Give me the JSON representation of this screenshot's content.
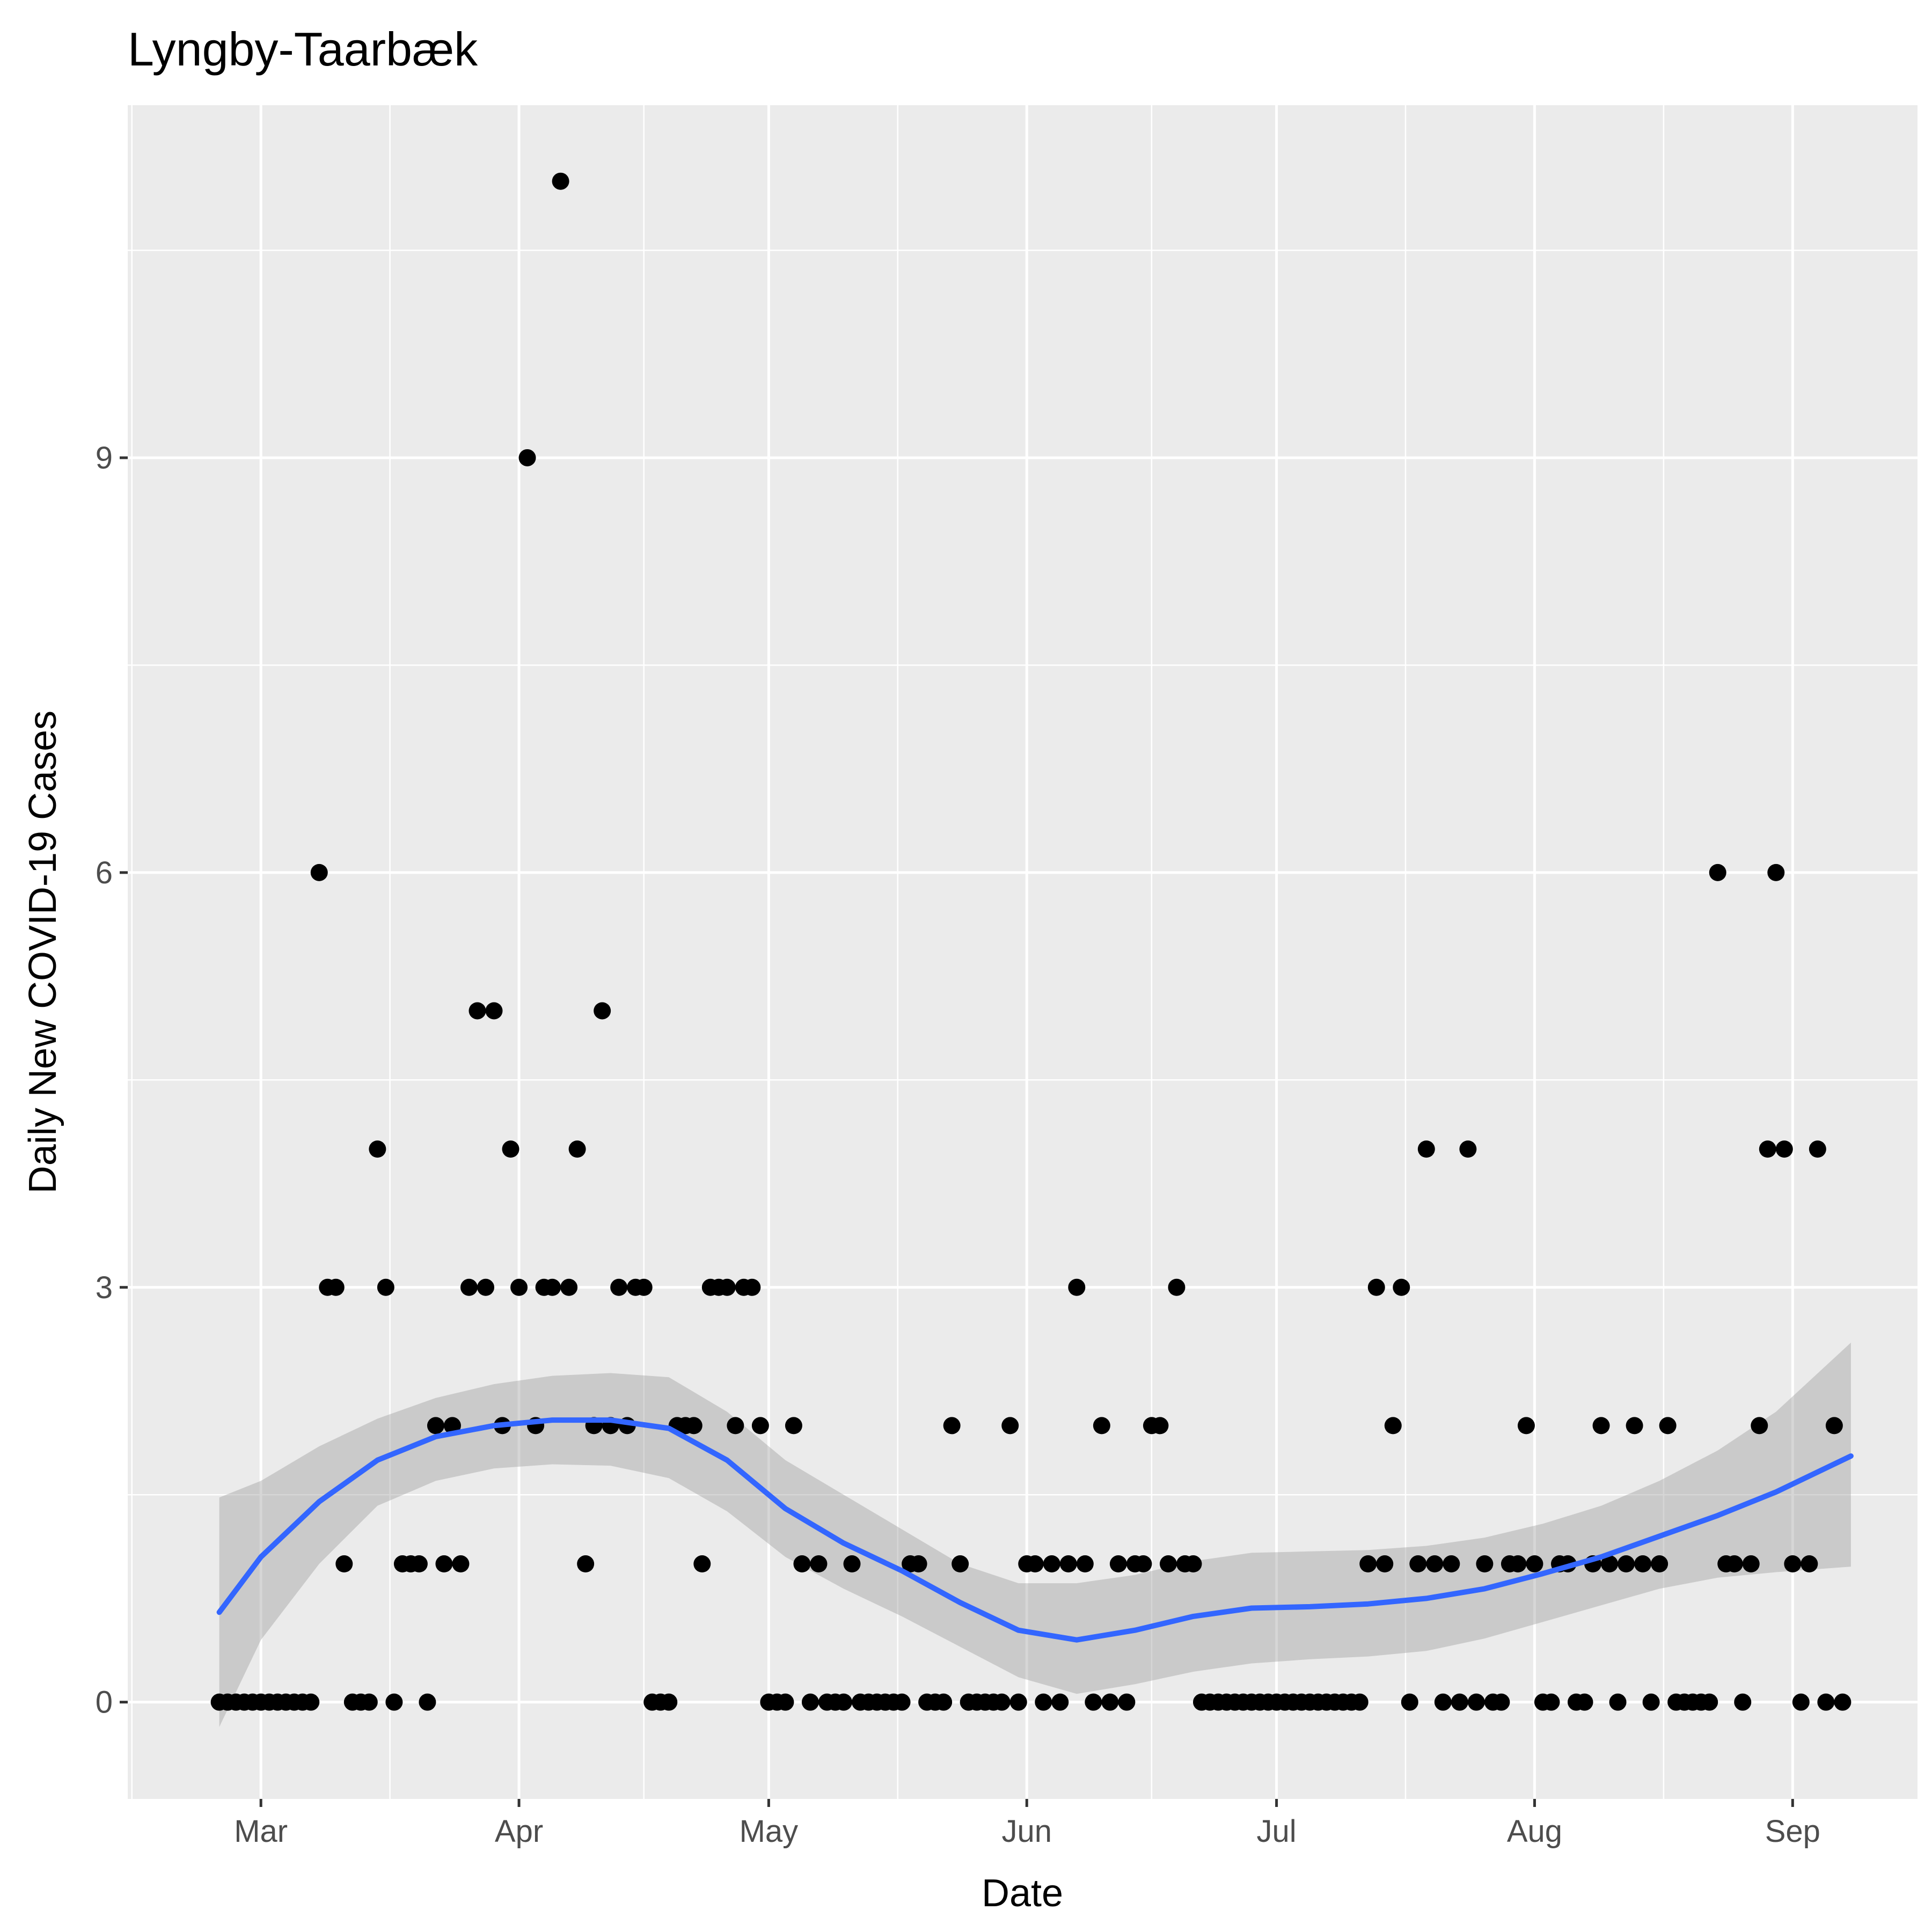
{
  "chart_data": {
    "type": "scatter",
    "title": "Lyngby-Taarbæk",
    "xlabel": "Date",
    "ylabel": "Daily New COVID-19 Cases",
    "x_ticks": [
      {
        "date": "2020-03-01",
        "label": "Mar"
      },
      {
        "date": "2020-04-01",
        "label": "Apr"
      },
      {
        "date": "2020-05-01",
        "label": "May"
      },
      {
        "date": "2020-06-01",
        "label": "Jun"
      },
      {
        "date": "2020-07-01",
        "label": "Jul"
      },
      {
        "date": "2020-08-01",
        "label": "Aug"
      },
      {
        "date": "2020-09-01",
        "label": "Sep"
      }
    ],
    "y_ticks": [
      0,
      3,
      6,
      9
    ],
    "xlim": [
      "2020-02-14",
      "2020-09-16"
    ],
    "ylim": [
      -0.7,
      11.55
    ],
    "grid": true,
    "background": "#ebebeb",
    "points": [
      {
        "x": "2020-02-25",
        "y": 0
      },
      {
        "x": "2020-02-26",
        "y": 0
      },
      {
        "x": "2020-02-27",
        "y": 0
      },
      {
        "x": "2020-02-28",
        "y": 0
      },
      {
        "x": "2020-02-29",
        "y": 0
      },
      {
        "x": "2020-03-01",
        "y": 0
      },
      {
        "x": "2020-03-02",
        "y": 0
      },
      {
        "x": "2020-03-03",
        "y": 0
      },
      {
        "x": "2020-03-04",
        "y": 0
      },
      {
        "x": "2020-03-05",
        "y": 0
      },
      {
        "x": "2020-03-06",
        "y": 0
      },
      {
        "x": "2020-03-07",
        "y": 0
      },
      {
        "x": "2020-03-08",
        "y": 6
      },
      {
        "x": "2020-03-09",
        "y": 3
      },
      {
        "x": "2020-03-10",
        "y": 3
      },
      {
        "x": "2020-03-11",
        "y": 1
      },
      {
        "x": "2020-03-12",
        "y": 0
      },
      {
        "x": "2020-03-13",
        "y": 0
      },
      {
        "x": "2020-03-14",
        "y": 0
      },
      {
        "x": "2020-03-15",
        "y": 4
      },
      {
        "x": "2020-03-16",
        "y": 3
      },
      {
        "x": "2020-03-17",
        "y": 0
      },
      {
        "x": "2020-03-18",
        "y": 1
      },
      {
        "x": "2020-03-19",
        "y": 1
      },
      {
        "x": "2020-03-20",
        "y": 1
      },
      {
        "x": "2020-03-21",
        "y": 0
      },
      {
        "x": "2020-03-22",
        "y": 2
      },
      {
        "x": "2020-03-23",
        "y": 1
      },
      {
        "x": "2020-03-24",
        "y": 2
      },
      {
        "x": "2020-03-25",
        "y": 1
      },
      {
        "x": "2020-03-26",
        "y": 3
      },
      {
        "x": "2020-03-27",
        "y": 5
      },
      {
        "x": "2020-03-28",
        "y": 3
      },
      {
        "x": "2020-03-29",
        "y": 5
      },
      {
        "x": "2020-03-30",
        "y": 2
      },
      {
        "x": "2020-03-31",
        "y": 4
      },
      {
        "x": "2020-04-01",
        "y": 3
      },
      {
        "x": "2020-04-02",
        "y": 9
      },
      {
        "x": "2020-04-03",
        "y": 2
      },
      {
        "x": "2020-04-04",
        "y": 3
      },
      {
        "x": "2020-04-05",
        "y": 3
      },
      {
        "x": "2020-04-06",
        "y": 11
      },
      {
        "x": "2020-04-07",
        "y": 3
      },
      {
        "x": "2020-04-08",
        "y": 4
      },
      {
        "x": "2020-04-09",
        "y": 1
      },
      {
        "x": "2020-04-10",
        "y": 2
      },
      {
        "x": "2020-04-11",
        "y": 5
      },
      {
        "x": "2020-04-12",
        "y": 2
      },
      {
        "x": "2020-04-13",
        "y": 3
      },
      {
        "x": "2020-04-14",
        "y": 2
      },
      {
        "x": "2020-04-15",
        "y": 3
      },
      {
        "x": "2020-04-16",
        "y": 3
      },
      {
        "x": "2020-04-17",
        "y": 0
      },
      {
        "x": "2020-04-18",
        "y": 0
      },
      {
        "x": "2020-04-19",
        "y": 0
      },
      {
        "x": "2020-04-20",
        "y": 2
      },
      {
        "x": "2020-04-21",
        "y": 2
      },
      {
        "x": "2020-04-22",
        "y": 2
      },
      {
        "x": "2020-04-23",
        "y": 1
      },
      {
        "x": "2020-04-24",
        "y": 3
      },
      {
        "x": "2020-04-25",
        "y": 3
      },
      {
        "x": "2020-04-26",
        "y": 3
      },
      {
        "x": "2020-04-27",
        "y": 2
      },
      {
        "x": "2020-04-28",
        "y": 3
      },
      {
        "x": "2020-04-29",
        "y": 3
      },
      {
        "x": "2020-04-30",
        "y": 2
      },
      {
        "x": "2020-05-01",
        "y": 0
      },
      {
        "x": "2020-05-02",
        "y": 0
      },
      {
        "x": "2020-05-03",
        "y": 0
      },
      {
        "x": "2020-05-04",
        "y": 2
      },
      {
        "x": "2020-05-05",
        "y": 1
      },
      {
        "x": "2020-05-06",
        "y": 0
      },
      {
        "x": "2020-05-07",
        "y": 1
      },
      {
        "x": "2020-05-08",
        "y": 0
      },
      {
        "x": "2020-05-09",
        "y": 0
      },
      {
        "x": "2020-05-10",
        "y": 0
      },
      {
        "x": "2020-05-11",
        "y": 1
      },
      {
        "x": "2020-05-12",
        "y": 0
      },
      {
        "x": "2020-05-13",
        "y": 0
      },
      {
        "x": "2020-05-14",
        "y": 0
      },
      {
        "x": "2020-05-15",
        "y": 0
      },
      {
        "x": "2020-05-16",
        "y": 0
      },
      {
        "x": "2020-05-17",
        "y": 0
      },
      {
        "x": "2020-05-18",
        "y": 1
      },
      {
        "x": "2020-05-19",
        "y": 1
      },
      {
        "x": "2020-05-20",
        "y": 0
      },
      {
        "x": "2020-05-21",
        "y": 0
      },
      {
        "x": "2020-05-22",
        "y": 0
      },
      {
        "x": "2020-05-23",
        "y": 2
      },
      {
        "x": "2020-05-24",
        "y": 1
      },
      {
        "x": "2020-05-25",
        "y": 0
      },
      {
        "x": "2020-05-26",
        "y": 0
      },
      {
        "x": "2020-05-27",
        "y": 0
      },
      {
        "x": "2020-05-28",
        "y": 0
      },
      {
        "x": "2020-05-29",
        "y": 0
      },
      {
        "x": "2020-05-30",
        "y": 2
      },
      {
        "x": "2020-05-31",
        "y": 0
      },
      {
        "x": "2020-06-01",
        "y": 1
      },
      {
        "x": "2020-06-02",
        "y": 1
      },
      {
        "x": "2020-06-03",
        "y": 0
      },
      {
        "x": "2020-06-04",
        "y": 1
      },
      {
        "x": "2020-06-05",
        "y": 0
      },
      {
        "x": "2020-06-06",
        "y": 1
      },
      {
        "x": "2020-06-07",
        "y": 3
      },
      {
        "x": "2020-06-08",
        "y": 1
      },
      {
        "x": "2020-06-09",
        "y": 0
      },
      {
        "x": "2020-06-10",
        "y": 2
      },
      {
        "x": "2020-06-11",
        "y": 0
      },
      {
        "x": "2020-06-12",
        "y": 1
      },
      {
        "x": "2020-06-13",
        "y": 0
      },
      {
        "x": "2020-06-14",
        "y": 1
      },
      {
        "x": "2020-06-15",
        "y": 1
      },
      {
        "x": "2020-06-16",
        "y": 2
      },
      {
        "x": "2020-06-17",
        "y": 2
      },
      {
        "x": "2020-06-18",
        "y": 1
      },
      {
        "x": "2020-06-19",
        "y": 3
      },
      {
        "x": "2020-06-20",
        "y": 1
      },
      {
        "x": "2020-06-21",
        "y": 1
      },
      {
        "x": "2020-06-22",
        "y": 0
      },
      {
        "x": "2020-06-23",
        "y": 0
      },
      {
        "x": "2020-06-24",
        "y": 0
      },
      {
        "x": "2020-06-25",
        "y": 0
      },
      {
        "x": "2020-06-26",
        "y": 0
      },
      {
        "x": "2020-06-27",
        "y": 0
      },
      {
        "x": "2020-06-28",
        "y": 0
      },
      {
        "x": "2020-06-29",
        "y": 0
      },
      {
        "x": "2020-06-30",
        "y": 0
      },
      {
        "x": "2020-07-01",
        "y": 0
      },
      {
        "x": "2020-07-02",
        "y": 0
      },
      {
        "x": "2020-07-03",
        "y": 0
      },
      {
        "x": "2020-07-04",
        "y": 0
      },
      {
        "x": "2020-07-05",
        "y": 0
      },
      {
        "x": "2020-07-06",
        "y": 0
      },
      {
        "x": "2020-07-07",
        "y": 0
      },
      {
        "x": "2020-07-08",
        "y": 0
      },
      {
        "x": "2020-07-09",
        "y": 0
      },
      {
        "x": "2020-07-10",
        "y": 0
      },
      {
        "x": "2020-07-11",
        "y": 0
      },
      {
        "x": "2020-07-12",
        "y": 1
      },
      {
        "x": "2020-07-13",
        "y": 3
      },
      {
        "x": "2020-07-14",
        "y": 1
      },
      {
        "x": "2020-07-15",
        "y": 2
      },
      {
        "x": "2020-07-16",
        "y": 3
      },
      {
        "x": "2020-07-17",
        "y": 0
      },
      {
        "x": "2020-07-18",
        "y": 1
      },
      {
        "x": "2020-07-19",
        "y": 4
      },
      {
        "x": "2020-07-20",
        "y": 1
      },
      {
        "x": "2020-07-21",
        "y": 0
      },
      {
        "x": "2020-07-22",
        "y": 1
      },
      {
        "x": "2020-07-23",
        "y": 0
      },
      {
        "x": "2020-07-24",
        "y": 4
      },
      {
        "x": "2020-07-25",
        "y": 0
      },
      {
        "x": "2020-07-26",
        "y": 1
      },
      {
        "x": "2020-07-27",
        "y": 0
      },
      {
        "x": "2020-07-28",
        "y": 0
      },
      {
        "x": "2020-07-29",
        "y": 1
      },
      {
        "x": "2020-07-30",
        "y": 1
      },
      {
        "x": "2020-07-31",
        "y": 2
      },
      {
        "x": "2020-08-01",
        "y": 1
      },
      {
        "x": "2020-08-02",
        "y": 0
      },
      {
        "x": "2020-08-03",
        "y": 0
      },
      {
        "x": "2020-08-04",
        "y": 1
      },
      {
        "x": "2020-08-05",
        "y": 1
      },
      {
        "x": "2020-08-06",
        "y": 0
      },
      {
        "x": "2020-08-07",
        "y": 0
      },
      {
        "x": "2020-08-08",
        "y": 1
      },
      {
        "x": "2020-08-09",
        "y": 2
      },
      {
        "x": "2020-08-10",
        "y": 1
      },
      {
        "x": "2020-08-11",
        "y": 0
      },
      {
        "x": "2020-08-12",
        "y": 1
      },
      {
        "x": "2020-08-13",
        "y": 2
      },
      {
        "x": "2020-08-14",
        "y": 1
      },
      {
        "x": "2020-08-15",
        "y": 0
      },
      {
        "x": "2020-08-16",
        "y": 1
      },
      {
        "x": "2020-08-17",
        "y": 2
      },
      {
        "x": "2020-08-18",
        "y": 0
      },
      {
        "x": "2020-08-19",
        "y": 0
      },
      {
        "x": "2020-08-20",
        "y": 0
      },
      {
        "x": "2020-08-21",
        "y": 0
      },
      {
        "x": "2020-08-22",
        "y": 0
      },
      {
        "x": "2020-08-23",
        "y": 6
      },
      {
        "x": "2020-08-24",
        "y": 1
      },
      {
        "x": "2020-08-25",
        "y": 1
      },
      {
        "x": "2020-08-26",
        "y": 0
      },
      {
        "x": "2020-08-27",
        "y": 1
      },
      {
        "x": "2020-08-28",
        "y": 2
      },
      {
        "x": "2020-08-29",
        "y": 4
      },
      {
        "x": "2020-08-30",
        "y": 6
      },
      {
        "x": "2020-08-31",
        "y": 4
      },
      {
        "x": "2020-09-01",
        "y": 1
      },
      {
        "x": "2020-09-02",
        "y": 0
      },
      {
        "x": "2020-09-03",
        "y": 1
      },
      {
        "x": "2020-09-04",
        "y": 4
      },
      {
        "x": "2020-09-05",
        "y": 0
      },
      {
        "x": "2020-09-06",
        "y": 2
      },
      {
        "x": "2020-09-07",
        "y": 0
      }
    ],
    "smooth_line": {
      "color": "#3366ff",
      "points": [
        {
          "x": "2020-02-25",
          "y": 0.65
        },
        {
          "x": "2020-03-01",
          "y": 1.05
        },
        {
          "x": "2020-03-08",
          "y": 1.45
        },
        {
          "x": "2020-03-15",
          "y": 1.75
        },
        {
          "x": "2020-03-22",
          "y": 1.92
        },
        {
          "x": "2020-03-29",
          "y": 2.0
        },
        {
          "x": "2020-04-05",
          "y": 2.04
        },
        {
          "x": "2020-04-12",
          "y": 2.04
        },
        {
          "x": "2020-04-19",
          "y": 1.98
        },
        {
          "x": "2020-04-26",
          "y": 1.75
        },
        {
          "x": "2020-05-03",
          "y": 1.4
        },
        {
          "x": "2020-05-10",
          "y": 1.15
        },
        {
          "x": "2020-05-17",
          "y": 0.95
        },
        {
          "x": "2020-05-24",
          "y": 0.72
        },
        {
          "x": "2020-05-31",
          "y": 0.52
        },
        {
          "x": "2020-06-07",
          "y": 0.45
        },
        {
          "x": "2020-06-14",
          "y": 0.52
        },
        {
          "x": "2020-06-21",
          "y": 0.62
        },
        {
          "x": "2020-06-28",
          "y": 0.68
        },
        {
          "x": "2020-07-05",
          "y": 0.69
        },
        {
          "x": "2020-07-12",
          "y": 0.71
        },
        {
          "x": "2020-07-19",
          "y": 0.75
        },
        {
          "x": "2020-07-26",
          "y": 0.82
        },
        {
          "x": "2020-08-02",
          "y": 0.93
        },
        {
          "x": "2020-08-09",
          "y": 1.05
        },
        {
          "x": "2020-08-16",
          "y": 1.2
        },
        {
          "x": "2020-08-23",
          "y": 1.35
        },
        {
          "x": "2020-08-30",
          "y": 1.52
        },
        {
          "x": "2020-09-08",
          "y": 1.78
        }
      ]
    },
    "confidence_band": {
      "color": "#999999",
      "upper": [
        {
          "x": "2020-02-25",
          "y": 1.48
        },
        {
          "x": "2020-03-01",
          "y": 1.6
        },
        {
          "x": "2020-03-08",
          "y": 1.85
        },
        {
          "x": "2020-03-15",
          "y": 2.05
        },
        {
          "x": "2020-03-22",
          "y": 2.2
        },
        {
          "x": "2020-03-29",
          "y": 2.3
        },
        {
          "x": "2020-04-05",
          "y": 2.36
        },
        {
          "x": "2020-04-12",
          "y": 2.38
        },
        {
          "x": "2020-04-19",
          "y": 2.35
        },
        {
          "x": "2020-04-26",
          "y": 2.1
        },
        {
          "x": "2020-05-03",
          "y": 1.75
        },
        {
          "x": "2020-05-10",
          "y": 1.5
        },
        {
          "x": "2020-05-17",
          "y": 1.25
        },
        {
          "x": "2020-05-24",
          "y": 1.0
        },
        {
          "x": "2020-05-31",
          "y": 0.86
        },
        {
          "x": "2020-06-07",
          "y": 0.86
        },
        {
          "x": "2020-06-14",
          "y": 0.92
        },
        {
          "x": "2020-06-21",
          "y": 1.02
        },
        {
          "x": "2020-06-28",
          "y": 1.08
        },
        {
          "x": "2020-07-05",
          "y": 1.09
        },
        {
          "x": "2020-07-12",
          "y": 1.1
        },
        {
          "x": "2020-07-19",
          "y": 1.13
        },
        {
          "x": "2020-07-26",
          "y": 1.19
        },
        {
          "x": "2020-08-02",
          "y": 1.29
        },
        {
          "x": "2020-08-09",
          "y": 1.42
        },
        {
          "x": "2020-08-16",
          "y": 1.6
        },
        {
          "x": "2020-08-23",
          "y": 1.82
        },
        {
          "x": "2020-08-30",
          "y": 2.1
        },
        {
          "x": "2020-09-08",
          "y": 2.6
        }
      ],
      "lower": [
        {
          "x": "2020-02-25",
          "y": -0.18
        },
        {
          "x": "2020-03-01",
          "y": 0.45
        },
        {
          "x": "2020-03-08",
          "y": 1.0
        },
        {
          "x": "2020-03-15",
          "y": 1.42
        },
        {
          "x": "2020-03-22",
          "y": 1.6
        },
        {
          "x": "2020-03-29",
          "y": 1.69
        },
        {
          "x": "2020-04-05",
          "y": 1.72
        },
        {
          "x": "2020-04-12",
          "y": 1.71
        },
        {
          "x": "2020-04-19",
          "y": 1.62
        },
        {
          "x": "2020-04-26",
          "y": 1.38
        },
        {
          "x": "2020-05-03",
          "y": 1.05
        },
        {
          "x": "2020-05-10",
          "y": 0.82
        },
        {
          "x": "2020-05-17",
          "y": 0.62
        },
        {
          "x": "2020-05-24",
          "y": 0.4
        },
        {
          "x": "2020-05-31",
          "y": 0.18
        },
        {
          "x": "2020-06-07",
          "y": 0.06
        },
        {
          "x": "2020-06-14",
          "y": 0.13
        },
        {
          "x": "2020-06-21",
          "y": 0.22
        },
        {
          "x": "2020-06-28",
          "y": 0.28
        },
        {
          "x": "2020-07-05",
          "y": 0.31
        },
        {
          "x": "2020-07-12",
          "y": 0.33
        },
        {
          "x": "2020-07-19",
          "y": 0.37
        },
        {
          "x": "2020-07-26",
          "y": 0.46
        },
        {
          "x": "2020-08-02",
          "y": 0.58
        },
        {
          "x": "2020-08-09",
          "y": 0.7
        },
        {
          "x": "2020-08-16",
          "y": 0.82
        },
        {
          "x": "2020-08-23",
          "y": 0.9
        },
        {
          "x": "2020-08-30",
          "y": 0.94
        },
        {
          "x": "2020-09-08",
          "y": 0.98
        }
      ]
    }
  }
}
